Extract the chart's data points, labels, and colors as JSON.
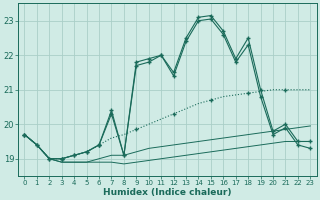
{
  "xlabel": "Humidex (Indice chaleur)",
  "bg_color": "#d0ebe5",
  "grid_color": "#aacfc8",
  "line_color": "#1a6b5a",
  "x_values": [
    0,
    1,
    2,
    3,
    4,
    5,
    6,
    7,
    8,
    9,
    10,
    11,
    12,
    13,
    14,
    15,
    16,
    17,
    18,
    19,
    20,
    21,
    22,
    23
  ],
  "series_min": [
    19.7,
    19.4,
    19.0,
    18.9,
    18.9,
    18.9,
    18.9,
    18.9,
    18.85,
    18.9,
    18.95,
    19.0,
    19.05,
    19.1,
    19.15,
    19.2,
    19.25,
    19.3,
    19.35,
    19.4,
    19.45,
    19.5,
    19.5,
    19.5
  ],
  "series_lower_trend": [
    19.7,
    19.4,
    19.0,
    18.9,
    18.9,
    18.9,
    19.0,
    19.1,
    19.1,
    19.2,
    19.3,
    19.35,
    19.4,
    19.45,
    19.5,
    19.55,
    19.6,
    19.65,
    19.7,
    19.75,
    19.8,
    19.85,
    19.9,
    19.95
  ],
  "series_upper_trend": [
    19.7,
    19.4,
    19.0,
    19.0,
    19.1,
    19.2,
    19.4,
    19.6,
    19.7,
    19.85,
    20.0,
    20.15,
    20.3,
    20.45,
    20.6,
    20.7,
    20.8,
    20.85,
    20.9,
    20.95,
    21.0,
    21.0,
    21.0,
    21.0
  ],
  "series_max_osc": [
    19.7,
    19.4,
    19.0,
    19.0,
    19.1,
    19.2,
    19.4,
    20.4,
    19.1,
    21.8,
    21.9,
    22.0,
    21.5,
    22.5,
    23.1,
    23.15,
    22.7,
    21.9,
    22.5,
    21.0,
    19.8,
    20.0,
    19.5,
    19.5
  ],
  "series_max_osc2": [
    19.7,
    19.4,
    19.0,
    19.0,
    19.1,
    19.2,
    19.4,
    20.3,
    19.1,
    21.7,
    21.8,
    22.0,
    21.4,
    22.4,
    23.0,
    23.05,
    22.6,
    21.8,
    22.3,
    20.8,
    19.7,
    19.9,
    19.4,
    19.3
  ],
  "ylim": [
    18.5,
    23.5
  ],
  "xlim": [
    -0.5,
    23.5
  ],
  "yticks": [
    19,
    20,
    21,
    22,
    23
  ],
  "xticks": [
    0,
    1,
    2,
    3,
    4,
    5,
    6,
    7,
    8,
    9,
    10,
    11,
    12,
    13,
    14,
    15,
    16,
    17,
    18,
    19,
    20,
    21,
    22,
    23
  ]
}
